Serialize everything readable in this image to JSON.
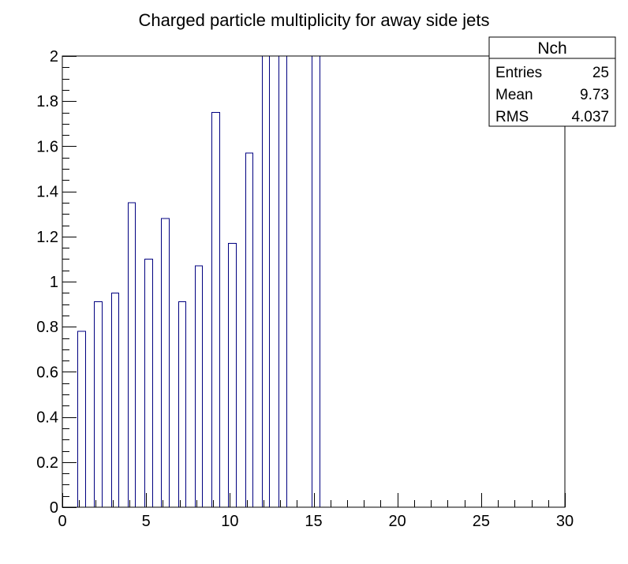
{
  "chart_data": {
    "type": "bar",
    "title": "Charged particle multiplicity for away side jets",
    "xlabel": "",
    "ylabel": "",
    "xlim": [
      0,
      30
    ],
    "ylim": [
      0,
      2
    ],
    "x_major_ticks": [
      0,
      5,
      10,
      15,
      20,
      25,
      30
    ],
    "y_major_ticks": [
      0,
      0.2,
      0.4,
      0.6,
      0.8,
      1,
      1.2,
      1.4,
      1.6,
      1.8,
      2
    ],
    "x_tick_labels": [
      "0",
      "5",
      "10",
      "15",
      "20",
      "25",
      "30"
    ],
    "y_tick_labels": [
      "0",
      "0.2",
      "0.4",
      "0.6",
      "0.8",
      "1",
      "1.2",
      "1.4",
      "1.6",
      "1.8",
      "2"
    ],
    "bins": [
      {
        "x": 1,
        "value": 0.78
      },
      {
        "x": 2,
        "value": 0.91
      },
      {
        "x": 3,
        "value": 0.95
      },
      {
        "x": 4,
        "value": 1.35
      },
      {
        "x": 5,
        "value": 1.1
      },
      {
        "x": 6,
        "value": 1.28
      },
      {
        "x": 7,
        "value": 0.91
      },
      {
        "x": 8,
        "value": 1.07
      },
      {
        "x": 9,
        "value": 1.75
      },
      {
        "x": 10,
        "value": 1.17
      },
      {
        "x": 11,
        "value": 1.57
      },
      {
        "x": 12,
        "value": 2.0
      },
      {
        "x": 13,
        "value": 2.0
      },
      {
        "x": 15,
        "value": 2.0
      }
    ],
    "bar_color": "#000080",
    "grid": false
  },
  "stats_box": {
    "name": "Nch",
    "rows": [
      {
        "label": "Entries",
        "value": "25"
      },
      {
        "label": "Mean",
        "value": "9.73"
      },
      {
        "label": "RMS",
        "value": "4.037"
      }
    ]
  }
}
